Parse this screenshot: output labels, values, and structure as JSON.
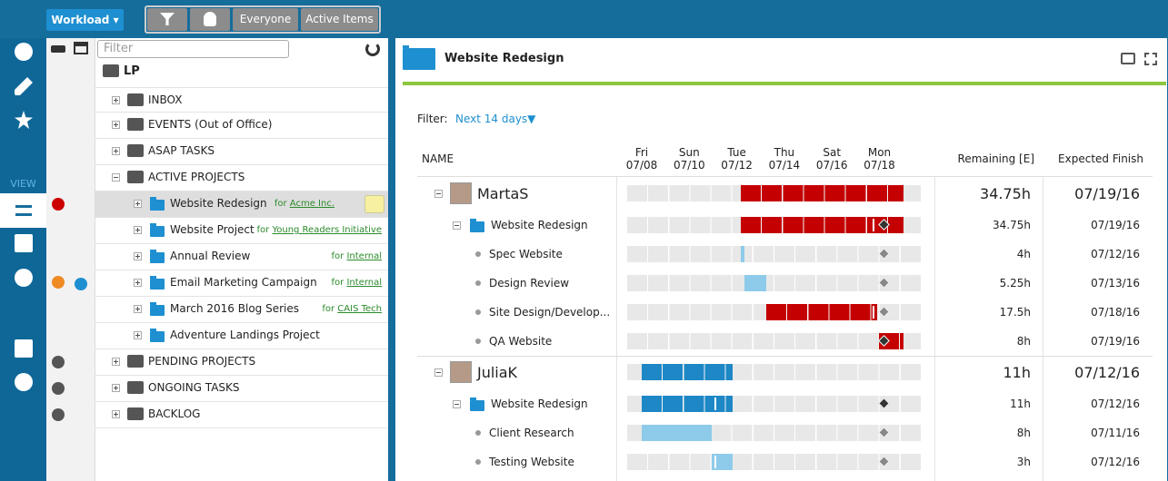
{
  "toolbar": {
    "view_button": "Workload ▾",
    "everyone": "Everyone",
    "active_items": "Active Items"
  },
  "sidebar": {
    "view_label": "VIEW"
  },
  "tree": {
    "filter_placeholder": "Filter",
    "root": "LP",
    "rows": [
      {
        "label": "INBOX"
      },
      {
        "label": "EVENTS (Out of Office)"
      },
      {
        "label": "ASAP TASKS"
      },
      {
        "label": "ACTIVE PROJECTS",
        "children": [
          {
            "label": "Website Redesign",
            "for": "for",
            "client": "Acme Inc."
          },
          {
            "label": "Website Project",
            "for": "for",
            "client": "Young Readers Initiative"
          },
          {
            "label": "Annual Review",
            "for": "for",
            "client": "Internal"
          },
          {
            "label": "Email Marketing Campaign",
            "for": "for",
            "client": "Internal"
          },
          {
            "label": "March 2016 Blog Series",
            "for": "for",
            "client": "CAIS Tech"
          },
          {
            "label": "Adventure Landings Project"
          }
        ]
      },
      {
        "label": "PENDING PROJECTS"
      },
      {
        "label": "ONGOING TASKS"
      },
      {
        "label": "BACKLOG"
      }
    ]
  },
  "panel": {
    "title": "Website Redesign",
    "filter_label": "Filter:",
    "filter_value": "Next 14 days▼",
    "columns": {
      "name": "NAME",
      "remaining": "Remaining [E]",
      "finish": "Expected Finish",
      "dates": [
        {
          "day": "Fri",
          "date": "07/08"
        },
        {
          "day": "Sun",
          "date": "07/10"
        },
        {
          "day": "Tue",
          "date": "07/12"
        },
        {
          "day": "Thu",
          "date": "07/14"
        },
        {
          "day": "Sat",
          "date": "07/16"
        },
        {
          "day": "Mon",
          "date": "07/18"
        }
      ]
    },
    "people": [
      {
        "name": "MartaS",
        "remaining": "34.75h",
        "finish": "07/19/16",
        "project": {
          "name": "Website Redesign",
          "remaining": "34.75h",
          "finish": "07/19/16"
        },
        "tasks": [
          {
            "name": "Spec Website",
            "remaining": "4h",
            "finish": "07/12/16"
          },
          {
            "name": "Design Review",
            "remaining": "5.25h",
            "finish": "07/13/16"
          },
          {
            "name": "Site Design/Develop...",
            "remaining": "17.5h",
            "finish": "07/18/16"
          },
          {
            "name": "QA Website",
            "remaining": "8h",
            "finish": "07/19/16"
          }
        ]
      },
      {
        "name": "JuliaK",
        "remaining": "11h",
        "finish": "07/12/16",
        "project": {
          "name": "Website Redesign",
          "remaining": "11h",
          "finish": "07/12/16"
        },
        "tasks": [
          {
            "name": "Client Research",
            "remaining": "8h",
            "finish": "07/11/16"
          },
          {
            "name": "Testing Website",
            "remaining": "3h",
            "finish": "07/12/16"
          }
        ]
      }
    ]
  }
}
